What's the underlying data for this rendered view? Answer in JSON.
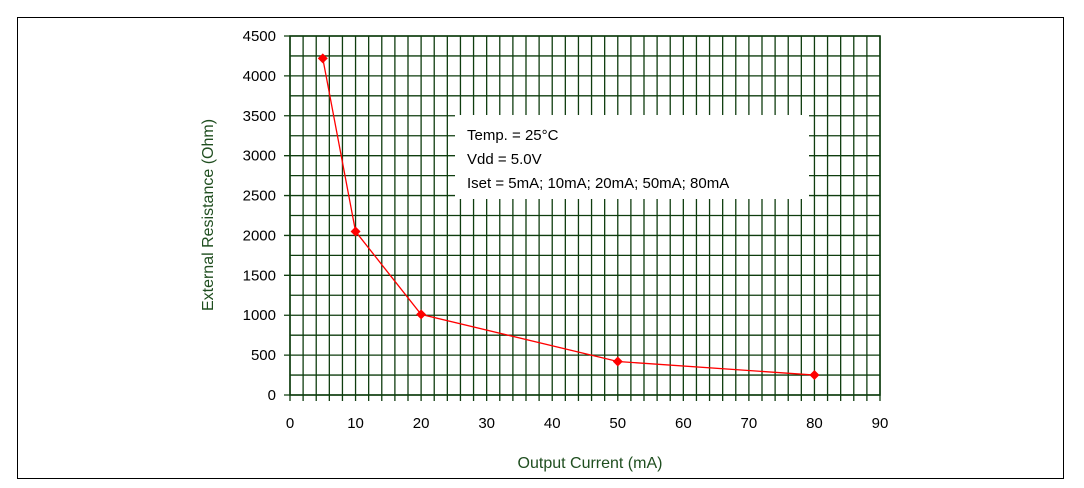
{
  "chart_data": {
    "type": "scatter",
    "title": "",
    "xlabel": "Output Current (mA)",
    "ylabel": "External Resistance (Ohm)",
    "xlim": [
      0,
      90
    ],
    "ylim": [
      0,
      4500
    ],
    "xticks": [
      0,
      10,
      20,
      30,
      40,
      50,
      60,
      70,
      80,
      90
    ],
    "yticks": [
      0,
      500,
      1000,
      1500,
      2000,
      2500,
      3000,
      3500,
      4000,
      4500
    ],
    "grid": true,
    "series": [
      {
        "x": [
          5,
          10,
          20,
          50,
          80
        ],
        "y": [
          4220,
          2050,
          1010,
          420,
          250
        ],
        "marker": "diamond",
        "line": true
      }
    ],
    "annotations": [
      "Temp. = 25°C",
      "Vdd = 5.0V",
      "Iset = 5mA; 10mA; 20mA; 50mA; 80mA"
    ]
  },
  "colors": {
    "grid": "#0f3d0f",
    "series": "#ff0000",
    "axis_title": "#1f4e1f",
    "tick_label": "#000000"
  }
}
